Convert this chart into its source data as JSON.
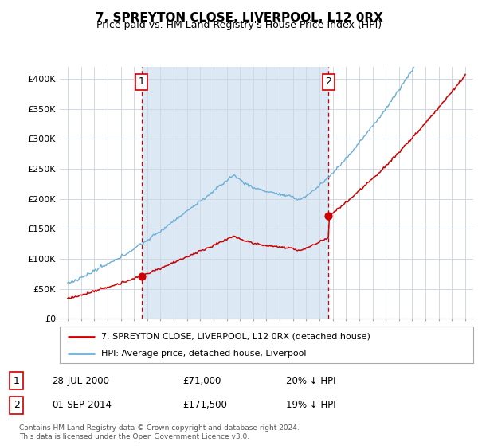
{
  "title": "7, SPREYTON CLOSE, LIVERPOOL, L12 0RX",
  "subtitle": "Price paid vs. HM Land Registry's House Price Index (HPI)",
  "ylim": [
    0,
    420000
  ],
  "yticks": [
    0,
    50000,
    100000,
    150000,
    200000,
    250000,
    300000,
    350000,
    400000
  ],
  "ytick_labels": [
    "£0",
    "£50K",
    "£100K",
    "£150K",
    "£200K",
    "£250K",
    "£300K",
    "£350K",
    "£400K"
  ],
  "hpi_color": "#6baed6",
  "price_color": "#cc0000",
  "shade_color": "#dce9f5",
  "sale1_year": 2000.58,
  "sale1_value": 71000,
  "sale2_year": 2014.67,
  "sale2_value": 171500,
  "legend_entry1_text": "7, SPREYTON CLOSE, LIVERPOOL, L12 0RX (detached house)",
  "legend_entry2": "HPI: Average price, detached house, Liverpool",
  "table_row1_num": "1",
  "table_row1_date": "28-JUL-2000",
  "table_row1_price": "£71,000",
  "table_row1_hpi": "20% ↓ HPI",
  "table_row2_num": "2",
  "table_row2_date": "01-SEP-2014",
  "table_row2_price": "£171,500",
  "table_row2_hpi": "19% ↓ HPI",
  "footer": "Contains HM Land Registry data © Crown copyright and database right 2024.\nThis data is licensed under the Open Government Licence v3.0.",
  "background_color": "#ffffff",
  "grid_color": "#d0d8e4"
}
